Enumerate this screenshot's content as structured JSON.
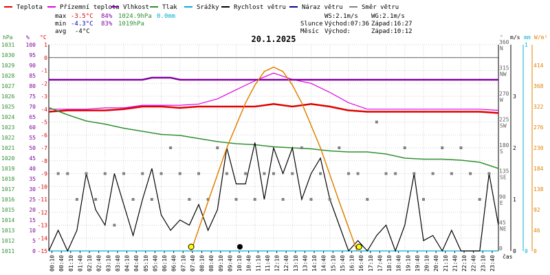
{
  "title": "20.1.2025",
  "legend": [
    {
      "name": "Teplota",
      "color": "#e00000"
    },
    {
      "name": "Přízemní teplota",
      "color": "#e000e0"
    },
    {
      "name": "Vlhkost",
      "color": "#8000a0"
    },
    {
      "name": "Tlak",
      "color": "#2f8f2f"
    },
    {
      "name": "Srážky",
      "color": "#00b0d0"
    },
    {
      "name": "Rychlost větru",
      "color": "#000000"
    },
    {
      "name": "Náraz větru",
      "color": "#000090"
    },
    {
      "name": "Směr větru",
      "color": "#808080"
    }
  ],
  "stats": {
    "max": {
      "label": "max",
      "temp": "-3.5°C",
      "hum": "84%",
      "press": "1024.9hPa",
      "rain": "0.0mm"
    },
    "min": {
      "label": "min",
      "temp": "-4.3°C",
      "hum": "83%",
      "press": "1019hPa"
    },
    "avg": {
      "label": "avg",
      "temp": "-4°C"
    }
  },
  "wind_info": {
    "ws": "WS:2.1m/s",
    "wg": "WG:2.1m/s"
  },
  "sun": {
    "label": "Slunce",
    "rise": "Východ:07:36",
    "set": "Západ:16:27"
  },
  "moon": {
    "label": "Měsíc",
    "rise": "Východ:",
    "set": "Západ:10:12"
  },
  "axis_units": {
    "hpa": "hPa",
    "pct": "%",
    "degc": "°C",
    "deg": "°",
    "ms": "m/s",
    "mm": "mm",
    "wm2": "W/m²",
    "time": "čas"
  },
  "chart_data": {
    "type": "line",
    "title": "20.1.2025",
    "xlabel": "čas",
    "x_ticks": [
      "00:10",
      "00:40",
      "01:10",
      "01:40",
      "02:10",
      "02:40",
      "03:10",
      "03:40",
      "04:10",
      "04:40",
      "05:10",
      "05:40",
      "06:10",
      "06:40",
      "07:10",
      "07:40",
      "08:10",
      "08:40",
      "09:10",
      "09:40",
      "10:10",
      "10:40",
      "11:10",
      "11:40",
      "12:10",
      "12:40",
      "13:10",
      "13:40",
      "14:10",
      "14:40",
      "15:10",
      "15:40",
      "16:10",
      "16:40",
      "17:10",
      "17:40",
      "18:10",
      "18:40",
      "19:10",
      "19:40",
      "20:10",
      "20:40",
      "21:10",
      "21:40",
      "22:10",
      "22:40",
      "23:10",
      "23:40"
    ],
    "x_range_hours": [
      0,
      24
    ],
    "axes": {
      "pressure_hpa": {
        "min": 1011,
        "max": 1031,
        "ticks": [
          1011,
          1012,
          1013,
          1014,
          1015,
          1016,
          1017,
          1018,
          1019,
          1020,
          1021,
          1022,
          1023,
          1024,
          1025,
          1026,
          1027,
          1028,
          1029,
          1030,
          1031
        ]
      },
      "humidity_pct": {
        "min": 0,
        "max": 100,
        "ticks": [
          0,
          5,
          10,
          15,
          20,
          25,
          30,
          35,
          40,
          45,
          50,
          55,
          60,
          65,
          70,
          75,
          80,
          85,
          90,
          95,
          100
        ]
      },
      "temperature_c": {
        "min": -15,
        "max": 1,
        "ticks": [
          1,
          0,
          -1,
          -2,
          -3,
          -4,
          -5,
          -6,
          -7,
          -8,
          -9,
          -10,
          -11,
          -12,
          -13,
          -14,
          -15
        ]
      },
      "wind_dir_deg": {
        "ticks": [
          {
            "v": 360,
            "l": "N"
          },
          {
            "v": 315,
            "l": "NW"
          },
          {
            "v": 270,
            "l": "W"
          },
          {
            "v": 225,
            "l": "SW"
          },
          {
            "v": 180,
            "l": "S"
          },
          {
            "v": 135,
            "l": "SE"
          },
          {
            "v": 90,
            "l": "E"
          },
          {
            "v": 45,
            "l": "NE"
          },
          {
            "v": 0,
            "l": ""
          }
        ]
      },
      "wind_ms": {
        "min": 0,
        "max": 4,
        "ticks": [
          0,
          1,
          2,
          3
        ]
      },
      "rain_mm": {
        "min": 0,
        "max": 1,
        "ticks": [
          0,
          1
        ]
      },
      "solar_wm2": {
        "min": 0,
        "max": 460,
        "ticks": [
          0,
          46,
          92,
          138,
          184,
          230,
          276,
          322,
          368,
          414
        ]
      }
    },
    "series": [
      {
        "name": "Teplota",
        "axis": "temperature_c",
        "color": "#e00000",
        "x": [
          0,
          1,
          2,
          3,
          4,
          5,
          6,
          7,
          8,
          9,
          10,
          11,
          12,
          13,
          14,
          15,
          16,
          17,
          18,
          19,
          20,
          21,
          22,
          23,
          24
        ],
        "y": [
          -4.2,
          -4.1,
          -4.1,
          -4.1,
          -4.0,
          -3.8,
          -3.8,
          -3.9,
          -3.8,
          -3.8,
          -3.8,
          -3.8,
          -3.6,
          -3.8,
          -3.6,
          -3.8,
          -4.1,
          -4.2,
          -4.2,
          -4.2,
          -4.2,
          -4.2,
          -4.2,
          -4.2,
          -4.3
        ]
      },
      {
        "name": "Přízemní teplota",
        "axis": "temperature_c",
        "color": "#e000e0",
        "x": [
          0,
          1,
          2,
          3,
          4,
          5,
          6,
          7,
          8,
          9,
          10,
          11,
          12,
          13,
          14,
          15,
          16,
          17,
          18,
          19,
          20,
          21,
          22,
          23,
          24
        ],
        "y": [
          -4.0,
          -4.0,
          -4.0,
          -3.9,
          -3.9,
          -3.7,
          -3.7,
          -3.7,
          -3.6,
          -3.2,
          -2.5,
          -1.8,
          -1.2,
          -1.7,
          -2.0,
          -2.7,
          -3.5,
          -4.0,
          -4.0,
          -4.0,
          -4.0,
          -4.0,
          -4.0,
          -4.0,
          -4.1
        ]
      },
      {
        "name": "Vlhkost",
        "axis": "humidity_pct",
        "color": "#8000a0",
        "x": [
          0,
          5,
          5.5,
          6.5,
          7,
          24
        ],
        "y": [
          83,
          83,
          84,
          84,
          83,
          83
        ]
      },
      {
        "name": "Tlak",
        "axis": "pressure_hpa",
        "color": "#2f8f2f",
        "x": [
          0,
          1,
          2,
          3,
          4,
          5,
          6,
          7,
          8,
          9,
          10,
          11,
          12,
          13,
          14,
          15,
          16,
          17,
          18,
          19,
          20,
          21,
          22,
          23,
          24
        ],
        "y": [
          1024.9,
          1024.2,
          1023.6,
          1023.3,
          1022.9,
          1022.6,
          1022.3,
          1022.2,
          1021.9,
          1021.6,
          1021.4,
          1021.3,
          1021.1,
          1021.0,
          1020.9,
          1020.7,
          1020.6,
          1020.6,
          1020.4,
          1020.0,
          1019.9,
          1019.9,
          1019.8,
          1019.6,
          1019.0
        ]
      },
      {
        "name": "Srážky",
        "axis": "rain_mm",
        "color": "#00b0d0",
        "x": [
          0,
          24
        ],
        "y": [
          0,
          0
        ]
      },
      {
        "name": "Rychlost větru",
        "axis": "wind_ms",
        "color": "#000000",
        "x": [
          0,
          0.5,
          1,
          1.5,
          2,
          2.5,
          3,
          3.5,
          4,
          4.5,
          5,
          5.5,
          6,
          6.5,
          7,
          7.5,
          8,
          8.5,
          9,
          9.5,
          10,
          10.5,
          11,
          11.5,
          12,
          12.5,
          13,
          13.5,
          14,
          14.5,
          15,
          15.5,
          16,
          16.5,
          17,
          17.5,
          18,
          18.5,
          19,
          19.5,
          20,
          20.5,
          21,
          21.5,
          22,
          22.5,
          23,
          23.5,
          24
        ],
        "y": [
          0,
          0.4,
          0,
          0.4,
          1.5,
          0.8,
          0.5,
          1.5,
          0.9,
          0.3,
          1.0,
          1.6,
          0.7,
          0.4,
          0.6,
          0.5,
          0.9,
          0.4,
          0.8,
          2.0,
          1.3,
          1.3,
          2.1,
          1.0,
          2.0,
          1.5,
          2.0,
          1.0,
          1.5,
          1.8,
          1.0,
          0.5,
          0,
          0.2,
          0,
          0.3,
          0.5,
          0,
          0.5,
          1.5,
          0.2,
          0.3,
          0,
          0.4,
          0,
          0,
          0,
          1.5,
          0.5
        ]
      },
      {
        "name": "Náraz větru",
        "axis": "wind_ms",
        "color": "#000090",
        "x": [],
        "y": []
      },
      {
        "name": "Směr větru",
        "axis": "wind_dir_deg",
        "color": "#808080",
        "type": "scatter",
        "x": [
          0.5,
          1,
          1.5,
          2,
          2.5,
          3,
          3.5,
          4,
          4.5,
          5,
          5.5,
          6,
          6.5,
          7,
          7.5,
          8,
          8.5,
          9,
          9.5,
          10,
          10.5,
          11,
          11.5,
          12,
          12.5,
          13,
          13.5,
          14,
          14.5,
          15,
          15.5,
          16,
          16.5,
          17,
          17.5,
          18,
          18.5,
          19,
          19.5,
          20,
          20.5,
          21,
          21.5,
          22,
          22.5,
          23,
          23.5
        ],
        "y": [
          135,
          135,
          90,
          135,
          90,
          135,
          45,
          135,
          90,
          135,
          90,
          135,
          180,
          135,
          90,
          135,
          90,
          180,
          135,
          90,
          135,
          90,
          135,
          135,
          90,
          135,
          180,
          90,
          135,
          90,
          180,
          135,
          135,
          90,
          225,
          135,
          135,
          180,
          135,
          90,
          135,
          180,
          135,
          180,
          135,
          90,
          135
        ]
      },
      {
        "name": "Solar",
        "axis": "solar_wm2",
        "color": "#e08000",
        "x": [
          7.6,
          8.5,
          9.5,
          10.5,
          11,
          11.5,
          12,
          12.5,
          13,
          13.5,
          14.5,
          15.5,
          16.45
        ],
        "y": [
          0,
          110,
          230,
          330,
          370,
          400,
          410,
          400,
          370,
          330,
          230,
          110,
          0
        ]
      }
    ],
    "sun_markers": {
      "rise_hour": 7.6,
      "set_hour": 16.45
    },
    "moon_marker": {
      "hour": 10.2
    }
  }
}
